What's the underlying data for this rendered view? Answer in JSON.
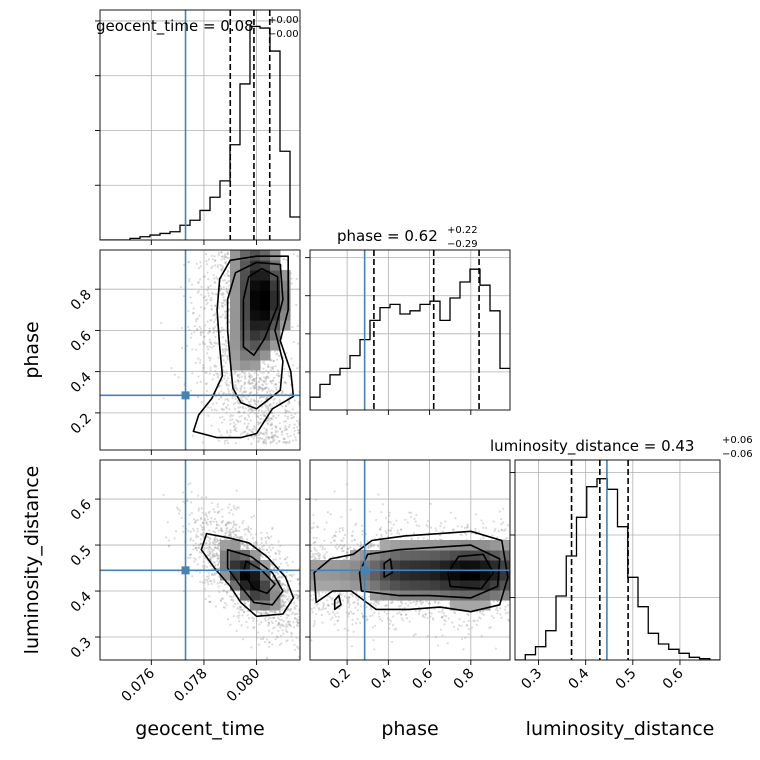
{
  "chart_data": {
    "type": "corner",
    "parameters": [
      "geocent_time",
      "phase",
      "luminosity_distance"
    ],
    "axis_labels": [
      "geocent_time",
      "phase",
      "luminosity_distance"
    ],
    "titles": [
      {
        "name": "geocent_time",
        "median": "0.08",
        "upper": "+0.00",
        "lower": "−0.00"
      },
      {
        "name": "phase",
        "median": "0.62",
        "upper": "+0.22",
        "lower": "−0.29"
      },
      {
        "name": "luminosity_distance",
        "median": "0.43",
        "upper": "+0.06",
        "lower": "−0.06"
      }
    ],
    "ranges": {
      "geocent_time": [
        0.07405,
        0.08165
      ],
      "phase": [
        0.02,
        0.99
      ],
      "luminosity_distance": [
        0.25,
        0.685
      ]
    },
    "ticks": {
      "geocent_time": [
        0.076,
        0.078,
        0.08
      ],
      "phase": [
        0.2,
        0.4,
        0.6,
        0.8
      ],
      "luminosity_distance": [
        0.3,
        0.4,
        0.5,
        0.6
      ]
    },
    "tick_labels": {
      "geocent_time": [
        "0.076",
        "0.078",
        "0.080"
      ],
      "phase": [
        "0.2",
        "0.4",
        "0.6",
        "0.8"
      ],
      "luminosity_distance": [
        "0.3",
        "0.4",
        "0.5",
        "0.6"
      ]
    },
    "truth": {
      "geocent_time": 0.0773,
      "phase": 0.285,
      "luminosity_distance": 0.445
    },
    "quantiles": {
      "geocent_time": [
        0.079,
        0.0799,
        0.0805
      ],
      "phase": [
        0.33,
        0.62,
        0.84
      ],
      "luminosity_distance": [
        0.37,
        0.43,
        0.49
      ]
    },
    "histograms": {
      "geocent_time": {
        "edges": [
          0.07405,
          0.07443,
          0.07481,
          0.07519,
          0.07557,
          0.07595,
          0.07633,
          0.07671,
          0.07709,
          0.07747,
          0.07785,
          0.07823,
          0.07861,
          0.07899,
          0.07937,
          0.07975,
          0.08013,
          0.08051,
          0.08089,
          0.08127,
          0.08165
        ],
        "counts": [
          0,
          0,
          0,
          1,
          2,
          3,
          4,
          5,
          9,
          12,
          18,
          26,
          36,
          58,
          95,
          130,
          129,
          115,
          54,
          14
        ],
        "max": 140
      },
      "phase": {
        "edges": [
          0.02,
          0.0685,
          0.117,
          0.1655,
          0.214,
          0.2625,
          0.311,
          0.3595,
          0.408,
          0.4565,
          0.505,
          0.5535,
          0.602,
          0.6505,
          0.699,
          0.7475,
          0.796,
          0.8445,
          0.893,
          0.9415,
          0.99
        ],
        "counts": [
          4,
          8,
          11,
          13,
          17,
          22,
          28,
          32,
          33,
          30,
          31,
          33,
          34,
          28,
          35,
          40,
          44,
          39,
          31,
          13
        ],
        "max": 50
      },
      "luminosity_distance": {
        "edges": [
          0.25,
          0.27175,
          0.2935,
          0.31525,
          0.337,
          0.35875,
          0.3805,
          0.40225,
          0.424,
          0.44575,
          0.4675,
          0.48925,
          0.511,
          0.53275,
          0.5545,
          0.57625,
          0.598,
          0.61975,
          0.6415,
          0.66325,
          0.685
        ],
        "counts": [
          0,
          4,
          10,
          22,
          48,
          78,
          107,
          130,
          136,
          128,
          100,
          62,
          40,
          20,
          12,
          8,
          5,
          2,
          1,
          0
        ],
        "max": 150
      }
    },
    "grid": true
  }
}
